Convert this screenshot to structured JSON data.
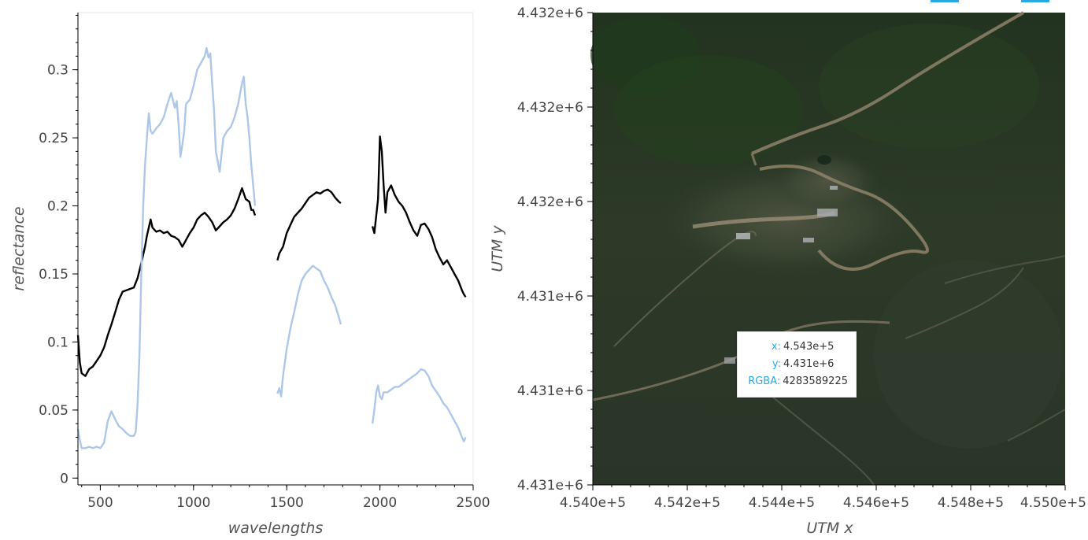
{
  "chart_data": [
    {
      "type": "line",
      "title": "",
      "xlabel": "wavelengths",
      "ylabel": "reflectance",
      "xlim": [
        380,
        2500
      ],
      "ylim": [
        -0.005,
        0.342
      ],
      "xticks": [
        500,
        1000,
        1500,
        2000,
        2500
      ],
      "xtick_labels": [
        "500",
        "1000",
        "1500",
        "2000",
        "2500"
      ],
      "yticks": [
        0,
        0.05,
        0.1,
        0.15,
        0.2,
        0.25,
        0.3
      ],
      "ytick_labels": [
        "0",
        "0.05",
        "0.1",
        "0.15",
        "0.2",
        "0.25",
        "0.3"
      ],
      "grid": false,
      "series": [
        {
          "color": "#000000",
          "segments": [
            [
              [
                380,
                0.105
              ],
              [
                390,
                0.085
              ],
              [
                400,
                0.077
              ],
              [
                420,
                0.075
              ],
              [
                440,
                0.08
              ],
              [
                460,
                0.082
              ],
              [
                480,
                0.086
              ],
              [
                500,
                0.09
              ],
              [
                520,
                0.096
              ],
              [
                540,
                0.105
              ],
              [
                560,
                0.113
              ],
              [
                580,
                0.122
              ],
              [
                600,
                0.131
              ],
              [
                620,
                0.137
              ],
              [
                640,
                0.138
              ],
              [
                660,
                0.139
              ],
              [
                680,
                0.14
              ],
              [
                700,
                0.147
              ],
              [
                720,
                0.158
              ],
              [
                740,
                0.17
              ],
              [
                750,
                0.178
              ],
              [
                760,
                0.184
              ],
              [
                770,
                0.19
              ],
              [
                780,
                0.184
              ],
              [
                800,
                0.181
              ],
              [
                820,
                0.182
              ],
              [
                840,
                0.18
              ],
              [
                860,
                0.181
              ],
              [
                880,
                0.178
              ],
              [
                900,
                0.177
              ],
              [
                920,
                0.175
              ],
              [
                940,
                0.17
              ],
              [
                960,
                0.175
              ],
              [
                980,
                0.18
              ],
              [
                1000,
                0.184
              ],
              [
                1020,
                0.19
              ],
              [
                1040,
                0.193
              ],
              [
                1060,
                0.195
              ],
              [
                1080,
                0.192
              ],
              [
                1100,
                0.188
              ],
              [
                1120,
                0.182
              ],
              [
                1140,
                0.185
              ],
              [
                1160,
                0.188
              ],
              [
                1180,
                0.19
              ],
              [
                1200,
                0.193
              ],
              [
                1220,
                0.198
              ],
              [
                1240,
                0.205
              ],
              [
                1260,
                0.213
              ],
              [
                1280,
                0.205
              ],
              [
                1300,
                0.203
              ],
              [
                1310,
                0.197
              ],
              [
                1320,
                0.197
              ],
              [
                1330,
                0.193
              ]
            ],
            [
              [
                1450,
                0.16
              ],
              [
                1460,
                0.165
              ],
              [
                1480,
                0.17
              ],
              [
                1500,
                0.18
              ],
              [
                1520,
                0.186
              ],
              [
                1540,
                0.192
              ],
              [
                1560,
                0.195
              ],
              [
                1580,
                0.198
              ],
              [
                1600,
                0.202
              ],
              [
                1620,
                0.206
              ],
              [
                1640,
                0.208
              ],
              [
                1660,
                0.21
              ],
              [
                1680,
                0.209
              ],
              [
                1700,
                0.211
              ],
              [
                1720,
                0.212
              ],
              [
                1740,
                0.21
              ],
              [
                1760,
                0.206
              ],
              [
                1780,
                0.203
              ],
              [
                1790,
                0.202
              ]
            ],
            [
              [
                1960,
                0.185
              ],
              [
                1970,
                0.18
              ],
              [
                1990,
                0.205
              ],
              [
                2000,
                0.251
              ],
              [
                2010,
                0.24
              ],
              [
                2020,
                0.215
              ],
              [
                2030,
                0.195
              ],
              [
                2040,
                0.21
              ],
              [
                2060,
                0.215
              ],
              [
                2080,
                0.208
              ],
              [
                2100,
                0.203
              ],
              [
                2120,
                0.2
              ],
              [
                2140,
                0.195
              ],
              [
                2160,
                0.188
              ],
              [
                2180,
                0.182
              ],
              [
                2200,
                0.178
              ],
              [
                2220,
                0.186
              ],
              [
                2240,
                0.187
              ],
              [
                2260,
                0.183
              ],
              [
                2280,
                0.177
              ],
              [
                2300,
                0.168
              ],
              [
                2320,
                0.162
              ],
              [
                2340,
                0.157
              ],
              [
                2360,
                0.16
              ],
              [
                2380,
                0.155
              ],
              [
                2400,
                0.15
              ],
              [
                2420,
                0.145
              ],
              [
                2440,
                0.138
              ],
              [
                2450,
                0.135
              ],
              [
                2460,
                0.133
              ]
            ]
          ]
        },
        {
          "color": "#aec7e8",
          "segments": [
            [
              [
                380,
                0.036
              ],
              [
                390,
                0.028
              ],
              [
                400,
                0.022
              ],
              [
                420,
                0.022
              ],
              [
                440,
                0.023
              ],
              [
                460,
                0.022
              ],
              [
                480,
                0.023
              ],
              [
                500,
                0.022
              ],
              [
                520,
                0.026
              ],
              [
                540,
                0.042
              ],
              [
                560,
                0.049
              ],
              [
                580,
                0.043
              ],
              [
                600,
                0.038
              ],
              [
                620,
                0.036
              ],
              [
                640,
                0.033
              ],
              [
                660,
                0.031
              ],
              [
                680,
                0.031
              ],
              [
                690,
                0.034
              ],
              [
                700,
                0.055
              ],
              [
                710,
                0.09
              ],
              [
                720,
                0.15
              ],
              [
                730,
                0.2
              ],
              [
                740,
                0.23
              ],
              [
                750,
                0.25
              ],
              [
                760,
                0.268
              ],
              [
                770,
                0.255
              ],
              [
                780,
                0.253
              ],
              [
                800,
                0.257
              ],
              [
                820,
                0.26
              ],
              [
                840,
                0.265
              ],
              [
                860,
                0.275
              ],
              [
                880,
                0.283
              ],
              [
                900,
                0.272
              ],
              [
                910,
                0.277
              ],
              [
                920,
                0.26
              ],
              [
                930,
                0.236
              ],
              [
                940,
                0.245
              ],
              [
                950,
                0.255
              ],
              [
                960,
                0.275
              ],
              [
                980,
                0.278
              ],
              [
                1000,
                0.288
              ],
              [
                1020,
                0.3
              ],
              [
                1040,
                0.305
              ],
              [
                1060,
                0.31
              ],
              [
                1070,
                0.316
              ],
              [
                1080,
                0.309
              ],
              [
                1090,
                0.312
              ],
              [
                1100,
                0.29
              ],
              [
                1110,
                0.27
              ],
              [
                1120,
                0.24
              ],
              [
                1140,
                0.225
              ],
              [
                1160,
                0.25
              ],
              [
                1180,
                0.255
              ],
              [
                1200,
                0.258
              ],
              [
                1220,
                0.265
              ],
              [
                1240,
                0.275
              ],
              [
                1260,
                0.29
              ],
              [
                1270,
                0.295
              ],
              [
                1280,
                0.275
              ],
              [
                1290,
                0.265
              ],
              [
                1300,
                0.25
              ],
              [
                1310,
                0.23
              ],
              [
                1320,
                0.215
              ],
              [
                1330,
                0.2
              ]
            ],
            [
              [
                1450,
                0.062
              ],
              [
                1460,
                0.066
              ],
              [
                1470,
                0.06
              ],
              [
                1480,
                0.075
              ],
              [
                1500,
                0.095
              ],
              [
                1520,
                0.11
              ],
              [
                1540,
                0.122
              ],
              [
                1560,
                0.135
              ],
              [
                1580,
                0.145
              ],
              [
                1600,
                0.15
              ],
              [
                1620,
                0.153
              ],
              [
                1640,
                0.156
              ],
              [
                1660,
                0.154
              ],
              [
                1680,
                0.152
              ],
              [
                1700,
                0.145
              ],
              [
                1720,
                0.14
              ],
              [
                1740,
                0.133
              ],
              [
                1760,
                0.127
              ],
              [
                1780,
                0.118
              ],
              [
                1790,
                0.113
              ]
            ],
            [
              [
                1960,
                0.04
              ],
              [
                1970,
                0.05
              ],
              [
                1980,
                0.063
              ],
              [
                1990,
                0.068
              ],
              [
                2000,
                0.06
              ],
              [
                2010,
                0.058
              ],
              [
                2020,
                0.063
              ],
              [
                2040,
                0.063
              ],
              [
                2060,
                0.065
              ],
              [
                2080,
                0.067
              ],
              [
                2100,
                0.067
              ],
              [
                2120,
                0.069
              ],
              [
                2140,
                0.071
              ],
              [
                2160,
                0.073
              ],
              [
                2180,
                0.075
              ],
              [
                2200,
                0.077
              ],
              [
                2220,
                0.08
              ],
              [
                2240,
                0.079
              ],
              [
                2260,
                0.075
              ],
              [
                2280,
                0.068
              ],
              [
                2300,
                0.064
              ],
              [
                2320,
                0.06
              ],
              [
                2340,
                0.055
              ],
              [
                2360,
                0.052
              ],
              [
                2380,
                0.047
              ],
              [
                2400,
                0.042
              ],
              [
                2420,
                0.037
              ],
              [
                2440,
                0.03
              ],
              [
                2450,
                0.027
              ],
              [
                2460,
                0.03
              ]
            ]
          ]
        }
      ]
    },
    {
      "type": "image",
      "title": "",
      "xlabel": "UTM x",
      "ylabel": "UTM y",
      "xlim": [
        454000,
        455000
      ],
      "xticks": [
        454000,
        454200,
        454400,
        454600,
        454800,
        455000
      ],
      "xtick_labels": [
        "4.540e+5",
        "4.542e+5",
        "4.544e+5",
        "4.546e+5",
        "4.548e+5",
        "4.550e+5"
      ],
      "ytick_labels": [
        "4.432e+6",
        "4.432e+6",
        "4.432e+6",
        "4.431e+6",
        "4.431e+6",
        "4.431e+6"
      ],
      "tooltip": {
        "rows": [
          {
            "key": "x:",
            "value": "4.543e+5"
          },
          {
            "key": "y:",
            "value": "4.431e+6"
          },
          {
            "key": "RGBA:",
            "value": "4283589225"
          }
        ]
      }
    }
  ]
}
